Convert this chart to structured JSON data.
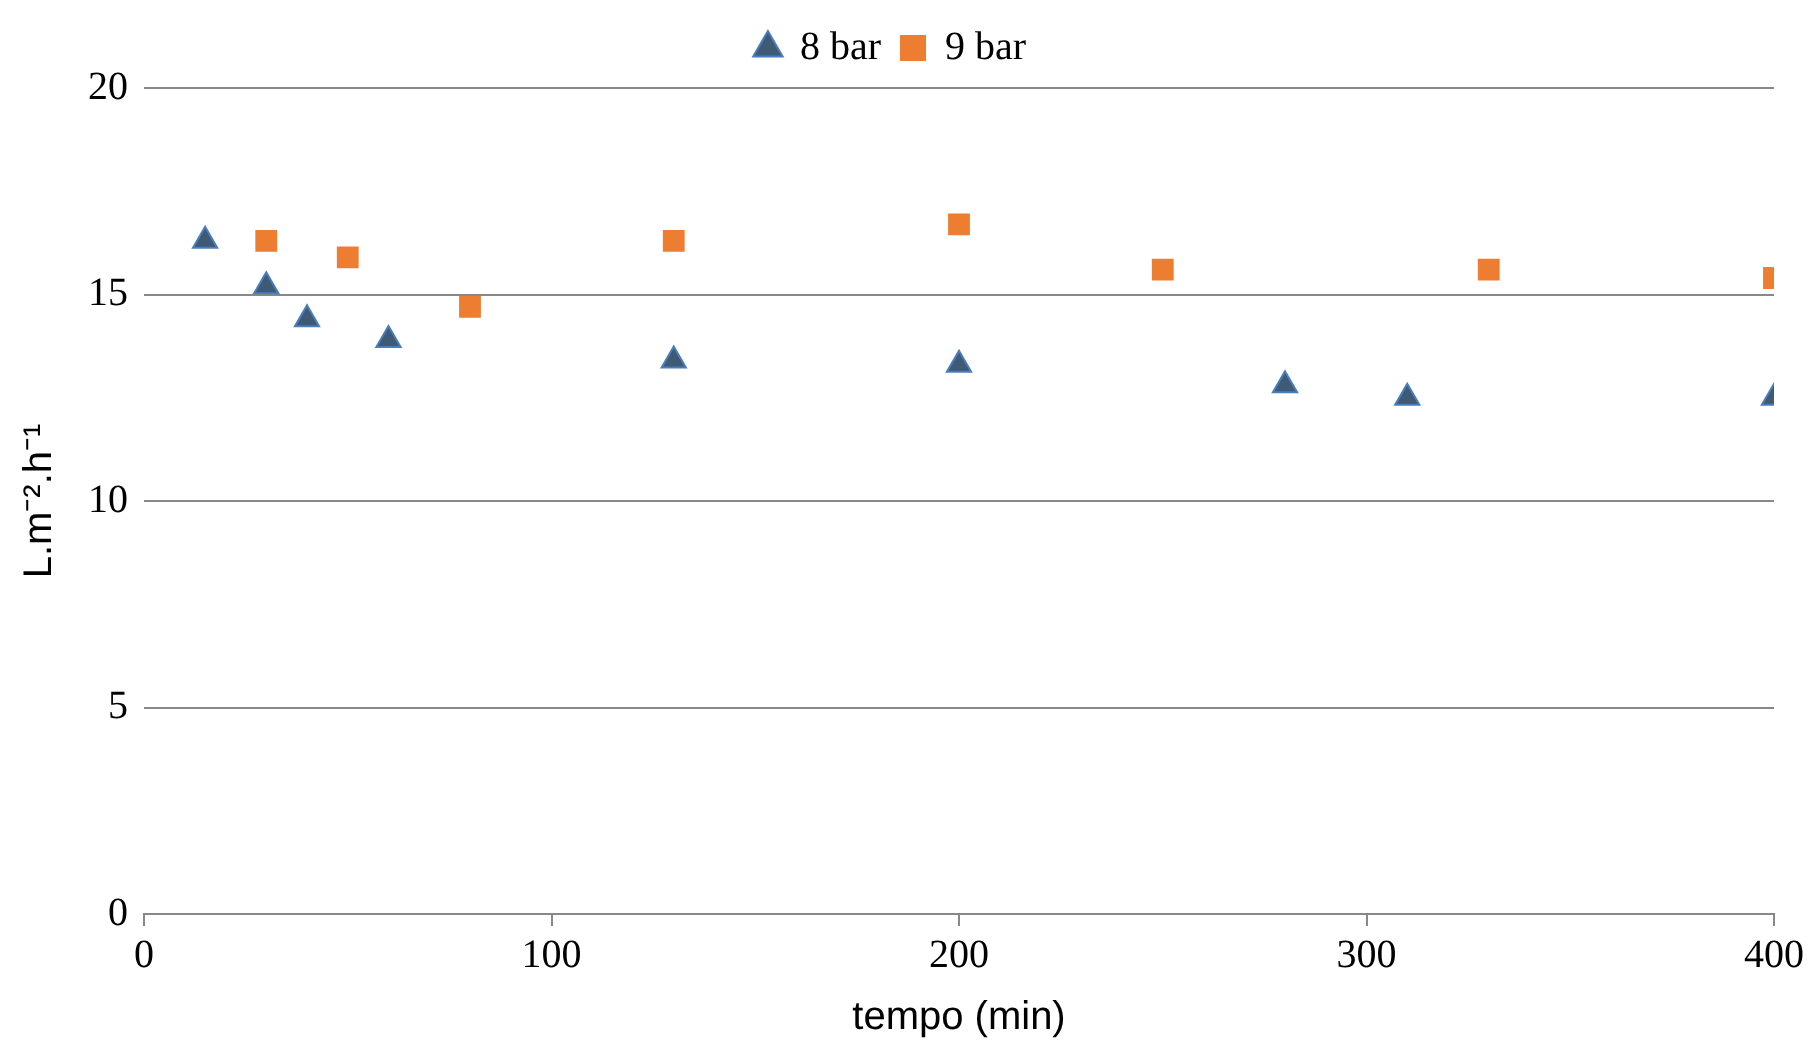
{
  "chart_data": {
    "type": "scatter",
    "xlabel": "tempo (min)",
    "ylabel": "L.m⁻².h⁻¹",
    "xlim": [
      0,
      400
    ],
    "xticks": [
      0,
      100,
      200,
      300,
      400
    ],
    "ylim": [
      0,
      20
    ],
    "yticks": [
      0,
      5,
      10,
      15,
      20
    ],
    "grid": "y",
    "legend": "top",
    "series": [
      {
        "name": "8 bar",
        "color": "#3f5a75",
        "marker": "triangle",
        "x": [
          15,
          30,
          40,
          60,
          130,
          200,
          280,
          310,
          400
        ],
        "values": [
          16.3,
          15.2,
          14.4,
          13.9,
          13.4,
          13.3,
          12.8,
          12.5,
          12.5
        ]
      },
      {
        "name": "9 bar",
        "color": "#ed7d31",
        "marker": "square",
        "x": [
          30,
          50,
          80,
          130,
          200,
          250,
          330,
          400
        ],
        "values": [
          16.3,
          15.9,
          14.7,
          16.3,
          16.7,
          15.6,
          15.6,
          15.4
        ]
      }
    ]
  }
}
